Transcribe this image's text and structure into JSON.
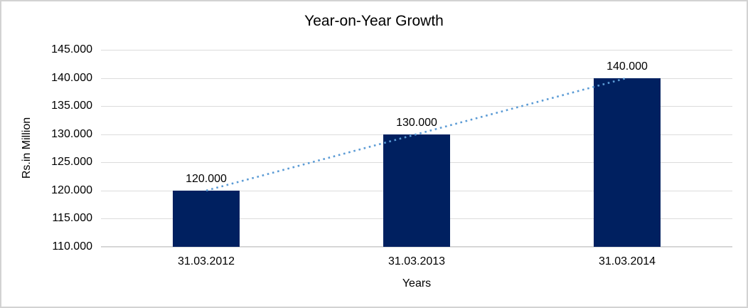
{
  "chart": {
    "title": "Year-on-Year Growth",
    "y_axis_title": "Rs.in Million",
    "x_axis_title": "Years"
  },
  "chart_data": {
    "type": "bar",
    "title": "Year-on-Year Growth",
    "xlabel": "Years",
    "ylabel": "Rs.in Million",
    "categories": [
      "31.03.2012",
      "31.03.2013",
      "31.03.2014"
    ],
    "values": [
      120000,
      130000,
      140000
    ],
    "data_labels": [
      "120.000",
      "130.000",
      "140.000"
    ],
    "ylim": [
      110000,
      145000
    ],
    "yticks": [
      {
        "value": 110000,
        "label": "110.000"
      },
      {
        "value": 115000,
        "label": "115.000"
      },
      {
        "value": 120000,
        "label": "120.000"
      },
      {
        "value": 125000,
        "label": "125.000"
      },
      {
        "value": 130000,
        "label": "130.000"
      },
      {
        "value": 135000,
        "label": "135.000"
      },
      {
        "value": 140000,
        "label": "140.000"
      },
      {
        "value": 145000,
        "label": "145.000"
      }
    ],
    "grid": "horizontal-only",
    "legend": "none",
    "bar_width_fraction": 0.32,
    "colors": {
      "bar": "#002060",
      "trendline": "#5B9BD5",
      "gridline": "#dcdcdc",
      "axis_line": "#d2d2d2",
      "text": "#000000"
    },
    "trendline": {
      "type": "linear",
      "style": "dotted",
      "color": "#5B9BD5",
      "from_category_index": 0,
      "to_category_index": 2
    }
  }
}
